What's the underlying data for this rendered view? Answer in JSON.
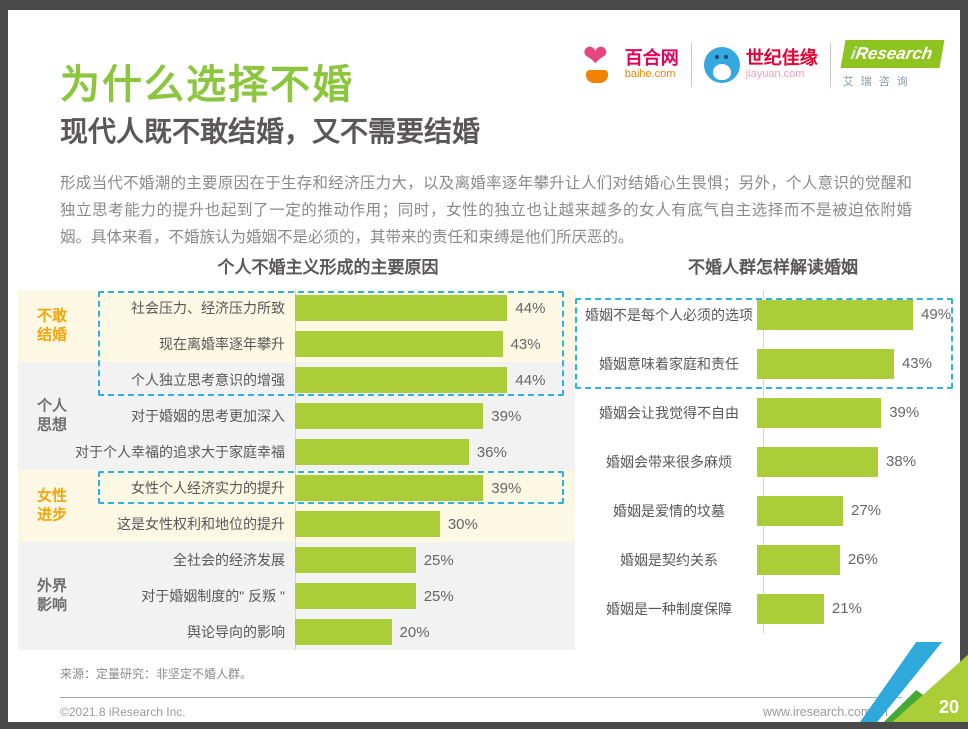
{
  "page": {
    "title": "为什么选择不婚",
    "subtitle": "现代人既不敢结婚，又不需要结婚",
    "paragraph": "形成当代不婚潮的主要原因在于生存和经济压力大，以及离婚率逐年攀升让人们对结婚心生畏惧；另外，个人意识的觉醒和独立思考能力的提升也起到了一定的推动作用；同时，女性的独立也让越来越多的女人有底气自主选择而不是被迫依附婚姻。具体来看，不婚族认为婚姻不是必须的，其带来的责任和束缚是他们所厌恶的。",
    "page_number": "20"
  },
  "logos": {
    "baihe": {
      "name": "百合网",
      "domain": "baihe.com"
    },
    "jiayuan": {
      "name": "世纪佳缘",
      "domain": "jiayuan.com"
    },
    "iresearch": {
      "brand_i": "i",
      "brand_rest": "Research",
      "cn": "艾瑞咨询"
    }
  },
  "footer": {
    "source": "来源：定量研究：非坚定不婚人群。",
    "copyright": "©2021.8 iResearch Inc.",
    "website": "www.iresearch.com.cn"
  },
  "colors": {
    "bar_green": "#aacd38",
    "title_green": "#8cc63f",
    "accent_orange": "#f2a50c",
    "callout_cyan": "#2fb0e3",
    "band_cream": "#fdf8e3",
    "band_gray": "#f2f2f2"
  },
  "chart_data": [
    {
      "type": "bar",
      "orientation": "horizontal",
      "title": "个人不婚主义形成的主要原因",
      "groups": [
        {
          "label": "不敢结婚",
          "row_count": 2,
          "highlight": true
        },
        {
          "label": "个人思想",
          "row_count": 3,
          "highlight": false
        },
        {
          "label": "女性进步",
          "row_count": 2,
          "highlight": true
        },
        {
          "label": "外界影响",
          "row_count": 3,
          "highlight": false
        }
      ],
      "categories": [
        "社会压力、经济压力所致",
        "现在离婚率逐年攀升",
        "个人独立思考意识的增强",
        "对于婚姻的思考更加深入",
        "对于个人幸福的追求大于家庭幸福",
        "女性个人经济实力的提升",
        "这是女性权利和地位的提升",
        "全社会的经济发展",
        "对于婚姻制度的\" 反叛 \"",
        "舆论导向的影响"
      ],
      "values": [
        44,
        43,
        44,
        39,
        36,
        39,
        30,
        25,
        25,
        20
      ],
      "unit": "%",
      "xlim": [
        0,
        58
      ],
      "callouts": [
        {
          "start_row": 0,
          "end_row": 2
        },
        {
          "start_row": 5,
          "end_row": 5
        }
      ]
    },
    {
      "type": "bar",
      "orientation": "horizontal",
      "title": "不婚人群怎样解读婚姻",
      "categories": [
        "婚姻不是每个人必须的选项",
        "婚姻意味着家庭和责任",
        "婚姻会让我觉得不自由",
        "婚姻会带来很多麻烦",
        "婚姻是爱情的坟墓",
        "婚姻是契约关系",
        "婚姻是一种制度保障"
      ],
      "values": [
        49,
        43,
        39,
        38,
        27,
        26,
        21
      ],
      "unit": "%",
      "xlim": [
        0,
        54
      ],
      "callouts": [
        {
          "start_row": 0,
          "end_row": 1
        }
      ]
    }
  ]
}
